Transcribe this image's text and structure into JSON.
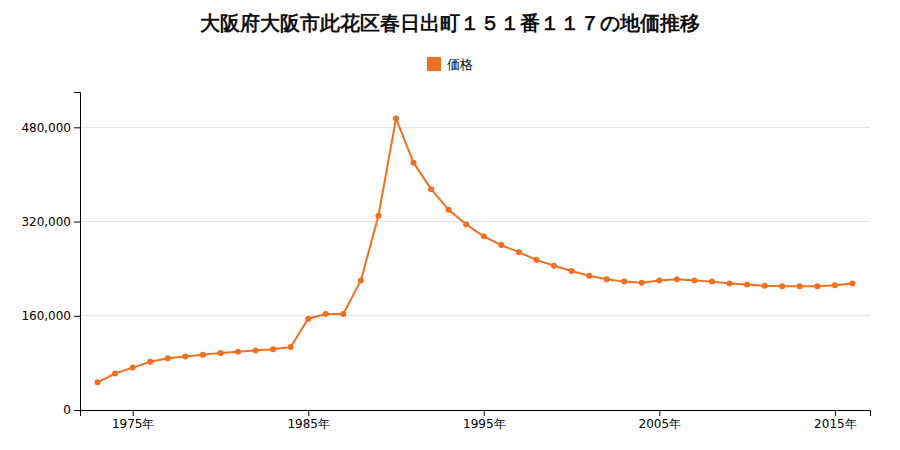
{
  "chart_data": {
    "type": "line",
    "title": "大阪府大阪市此花区春日出町１５１番１１７の地価推移",
    "x": [
      1973,
      1974,
      1975,
      1976,
      1977,
      1978,
      1979,
      1980,
      1981,
      1982,
      1983,
      1984,
      1985,
      1986,
      1987,
      1988,
      1989,
      1990,
      1991,
      1992,
      1993,
      1994,
      1995,
      1996,
      1997,
      1998,
      1999,
      2000,
      2001,
      2002,
      2003,
      2004,
      2005,
      2006,
      2007,
      2008,
      2009,
      2010,
      2011,
      2012,
      2013,
      2014,
      2015,
      2016
    ],
    "series": [
      {
        "name": "価格",
        "color": "#f07020",
        "marker": "circle",
        "values": [
          47000,
          62000,
          72000,
          82000,
          88000,
          91000,
          94000,
          97000,
          99000,
          101000,
          103000,
          107000,
          155000,
          163000,
          163000,
          220000,
          330000,
          495000,
          420000,
          375000,
          340000,
          315000,
          295000,
          280000,
          268000,
          255000,
          245000,
          236000,
          228000,
          222000,
          218000,
          216000,
          220000,
          222000,
          220000,
          218000,
          215000,
          213000,
          211000,
          210000,
          210000,
          210000,
          212000,
          215000
        ]
      }
    ],
    "xlim": [
      1972,
      2017
    ],
    "xticks": [
      {
        "value": 1975,
        "label": "1975年"
      },
      {
        "value": 1985,
        "label": "1985年"
      },
      {
        "value": 1995,
        "label": "1995年"
      },
      {
        "value": 2005,
        "label": "2005年"
      },
      {
        "value": 2015,
        "label": "2015年"
      }
    ],
    "ylim": [
      0,
      540000
    ],
    "yticks": [
      0,
      {
        "value": 160000,
        "label": "160,000"
      },
      {
        "value": 320000,
        "label": "320,000"
      },
      {
        "value": 480000,
        "label": "480,000"
      }
    ],
    "grid": "y",
    "legend": "top"
  }
}
